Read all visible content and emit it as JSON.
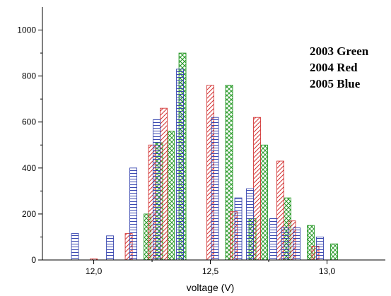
{
  "chart_data": {
    "type": "bar",
    "title": "",
    "xlabel": "voltage (V)",
    "ylabel": "",
    "xlim": [
      11.78,
      13.25
    ],
    "ylim": [
      0,
      1100
    ],
    "x_ticks": [
      {
        "value": 12.0,
        "label": "12,0"
      },
      {
        "value": 12.5,
        "label": "12,5"
      },
      {
        "value": 13.0,
        "label": "13,0"
      }
    ],
    "y_ticks": [
      {
        "value": 0,
        "label": "0"
      },
      {
        "value": 200,
        "label": "200"
      },
      {
        "value": 400,
        "label": "400"
      },
      {
        "value": 600,
        "label": "600"
      },
      {
        "value": 800,
        "label": "800"
      },
      {
        "value": 1000,
        "label": "1000"
      }
    ],
    "grid": false,
    "legend_text": [
      "2003 Green",
      "2004 Red",
      "2005 Blue"
    ],
    "legend_position": "top-right",
    "x": [
      11.95,
      12.0,
      12.05,
      12.1,
      12.15,
      12.2,
      12.25,
      12.3,
      12.35,
      12.4,
      12.45,
      12.5,
      12.55,
      12.6,
      12.65,
      12.7,
      12.75,
      12.8,
      12.85,
      12.9,
      12.95,
      13.0
    ],
    "series": [
      {
        "color": "#2b9b2b",
        "pattern": "crosshatch",
        "values": [
          0,
          0,
          0,
          0,
          0,
          200,
          510,
          560,
          900,
          0,
          0,
          0,
          760,
          0,
          180,
          500,
          0,
          270,
          0,
          150,
          0,
          70
        ]
      },
      {
        "color": "#d43a3a",
        "pattern": "diagonal",
        "values": [
          0,
          5,
          0,
          0,
          115,
          0,
          500,
          660,
          0,
          0,
          0,
          760,
          0,
          210,
          0,
          620,
          0,
          430,
          170,
          0,
          60,
          0
        ]
      },
      {
        "color": "#3a48b0",
        "pattern": "horizontal",
        "values": [
          115,
          0,
          0,
          105,
          0,
          400,
          0,
          610,
          0,
          830,
          0,
          0,
          620,
          0,
          270,
          310,
          0,
          180,
          140,
          140,
          0,
          100
        ]
      }
    ]
  }
}
